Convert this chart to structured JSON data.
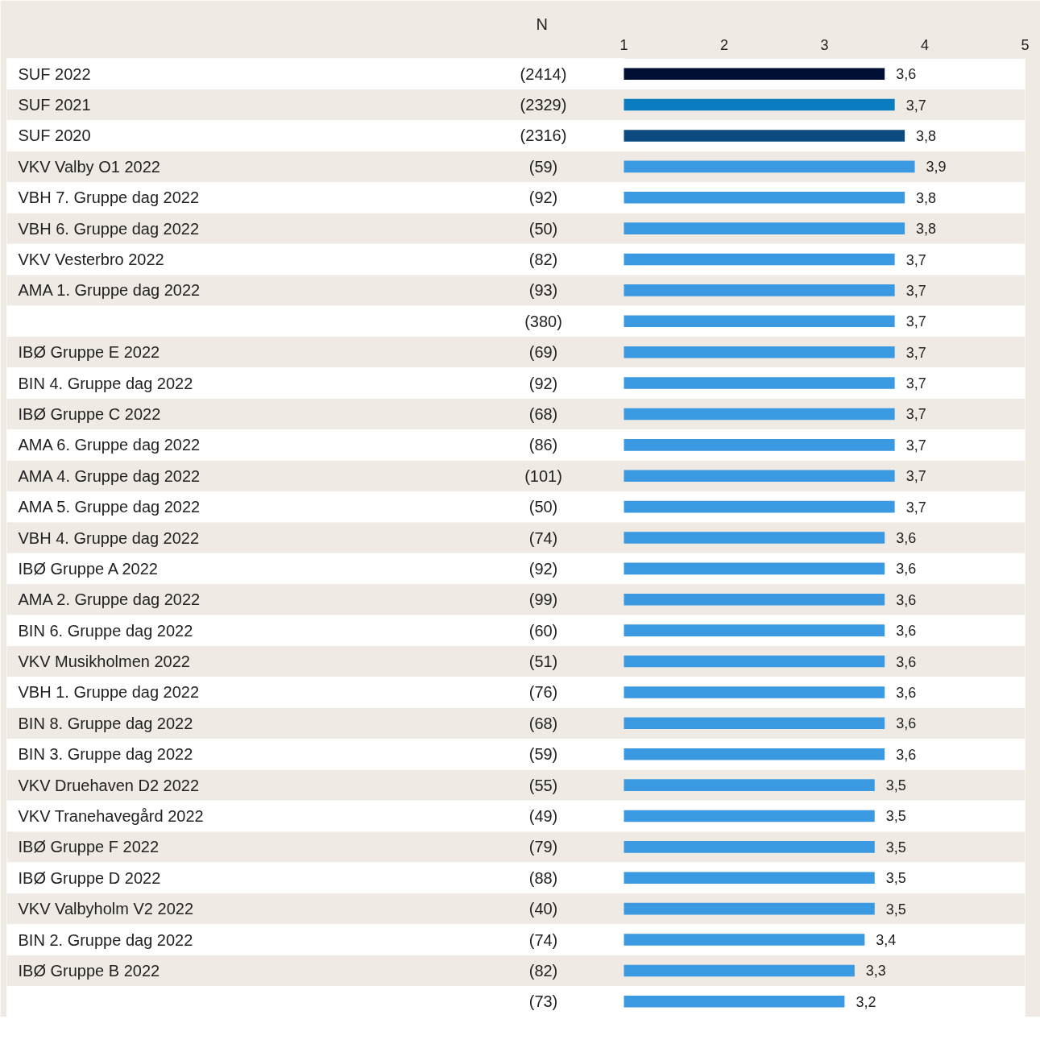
{
  "chart_data": {
    "type": "bar",
    "orientation": "horizontal",
    "categories": [
      "SUF 2022",
      "SUF 2021",
      "SUF 2020",
      "VKV Valby O1 2022",
      "VBH 7. Gruppe dag 2022",
      "VBH 6. Gruppe dag 2022",
      "VKV Vesterbro 2022",
      "AMA 1. Gruppe dag 2022",
      null,
      "IBØ Gruppe E 2022",
      "BIN 4. Gruppe dag 2022",
      "IBØ Gruppe C 2022",
      "AMA 6. Gruppe dag 2022",
      "AMA 4. Gruppe dag 2022",
      "AMA 5. Gruppe dag 2022",
      "VBH 4. Gruppe dag 2022",
      "IBØ Gruppe A 2022",
      "AMA 2. Gruppe dag 2022",
      "BIN 6. Gruppe dag 2022",
      "VKV Musikholmen 2022",
      "VBH 1. Gruppe dag 2022",
      "BIN 8. Gruppe dag 2022",
      "BIN 3. Gruppe dag 2022",
      "VKV Druehaven D2 2022",
      "VKV Tranehavegård 2022",
      "IBØ Gruppe F 2022",
      "IBØ Gruppe D 2022",
      "VKV Valbyholm V2 2022",
      "BIN 2. Gruppe dag 2022",
      "IBØ Gruppe B 2022",
      null
    ],
    "values": [
      3.6,
      3.7,
      3.8,
      3.9,
      3.8,
      3.8,
      3.7,
      3.7,
      3.7,
      3.7,
      3.7,
      3.7,
      3.7,
      3.7,
      3.7,
      3.6,
      3.6,
      3.6,
      3.6,
      3.6,
      3.6,
      3.6,
      3.6,
      3.5,
      3.5,
      3.5,
      3.5,
      3.5,
      3.4,
      3.3,
      3.2
    ],
    "colors": [
      "#000f33",
      "#0a7cc0",
      "#0d4a80",
      "#3a99e0",
      "#3a99e0",
      "#3a99e0",
      "#3a99e0",
      "#3a99e0",
      "#3a99e0",
      "#3a99e0",
      "#3a99e0",
      "#3a99e0",
      "#3a99e0",
      "#3a99e0",
      "#3a99e0",
      "#3a99e0",
      "#3a99e0",
      "#3a99e0",
      "#3a99e0",
      "#3a99e0",
      "#3a99e0",
      "#3a99e0",
      "#3a99e0",
      "#3a99e0",
      "#3a99e0",
      "#3a99e0",
      "#3a99e0",
      "#3a99e0",
      "#3a99e0",
      "#3a99e0",
      "#3a99e0"
    ],
    "value_labels": [
      "3,6",
      "3,7",
      "3,8",
      "3,9",
      "3,8",
      "3,8",
      "3,7",
      "3,7",
      "3,7",
      "3,7",
      "3,7",
      "3,7",
      "3,7",
      "3,7",
      "3,7",
      "3,6",
      "3,6",
      "3,6",
      "3,6",
      "3,6",
      "3,6",
      "3,6",
      "3,6",
      "3,5",
      "3,5",
      "3,5",
      "3,5",
      "3,5",
      "3,4",
      "3,3",
      "3,2"
    ],
    "annotations": [
      "N",
      "(2414)",
      "(2329)",
      "(2316)",
      "(59)",
      "(92)",
      "(50)",
      "(82)",
      "(93)",
      "(380)",
      "(69)",
      "(92)",
      "(68)",
      "(86)",
      "(101)",
      "(50)",
      "(74)",
      "(92)",
      "(99)",
      "(60)",
      "(51)",
      "(76)",
      "(68)",
      "(59)",
      "(55)",
      "(49)",
      "(79)",
      "(88)",
      "(40)",
      "(74)",
      "(82)",
      "(73)"
    ],
    "xlim": [
      1,
      5
    ],
    "x2lim": [
      1,
      5
    ],
    "x2ticks": [
      1,
      2,
      3,
      4,
      5
    ],
    "grid": false
  }
}
